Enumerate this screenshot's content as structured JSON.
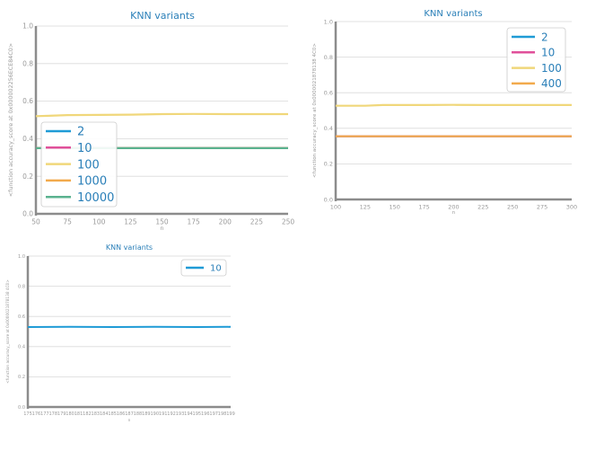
{
  "chart_data": [
    {
      "type": "line",
      "title": "KNN variants",
      "xlabel": "n",
      "ylabel": "<function accuracy_score at 0x000002256ECE84C0>",
      "xlim": [
        50,
        250
      ],
      "ylim": [
        0.0,
        1.0
      ],
      "xticks": [
        50,
        75,
        100,
        125,
        150,
        175,
        200,
        225,
        250
      ],
      "yticks": [
        0.0,
        0.2,
        0.4,
        0.6,
        0.8,
        1.0
      ],
      "grid": "horizontal",
      "legend_position": "lower-left",
      "series": [
        {
          "name": "2",
          "color": "#1f9bd6",
          "points": [
            [
              50,
              0.35
            ],
            [
              250,
              0.35
            ]
          ]
        },
        {
          "name": "10",
          "color": "#e0509a",
          "points": [
            [
              50,
              0.35
            ],
            [
              250,
              0.35
            ]
          ]
        },
        {
          "name": "100",
          "color": "#f0d77a",
          "points": [
            [
              50,
              0.52
            ],
            [
              60,
              0.522
            ],
            [
              75,
              0.526
            ],
            [
              100,
              0.527
            ],
            [
              125,
              0.528
            ],
            [
              150,
              0.531
            ],
            [
              175,
              0.532
            ],
            [
              200,
              0.531
            ],
            [
              225,
              0.531
            ],
            [
              250,
              0.531
            ]
          ]
        },
        {
          "name": "1000",
          "color": "#f2aa4c",
          "points": [
            [
              50,
              0.35
            ],
            [
              250,
              0.35
            ]
          ]
        },
        {
          "name": "10000",
          "color": "#5ab28f",
          "points": [
            [
              50,
              0.35
            ],
            [
              250,
              0.35
            ]
          ]
        }
      ]
    },
    {
      "type": "line",
      "title": "KNN variants",
      "xlabel": "n",
      "ylabel": "<function accuracy_score at 0x0000021878138 4C0>",
      "xlim": [
        100,
        300
      ],
      "ylim": [
        0.0,
        1.0
      ],
      "xticks": [
        100,
        125,
        150,
        175,
        200,
        225,
        250,
        275,
        300
      ],
      "yticks": [
        0.0,
        0.2,
        0.4,
        0.6,
        0.8,
        1.0
      ],
      "grid": "horizontal",
      "legend_position": "upper-right",
      "series": [
        {
          "name": "2",
          "color": "#1f9bd6",
          "points": [
            [
              100,
              0.355
            ],
            [
              300,
              0.355
            ]
          ]
        },
        {
          "name": "10",
          "color": "#e0509a",
          "points": [
            [
              100,
              0.355
            ],
            [
              300,
              0.355
            ]
          ]
        },
        {
          "name": "100",
          "color": "#f0d77a",
          "points": [
            [
              100,
              0.527
            ],
            [
              125,
              0.527
            ],
            [
              140,
              0.531
            ],
            [
              175,
              0.531
            ],
            [
              200,
              0.532
            ],
            [
              225,
              0.531
            ],
            [
              250,
              0.531
            ],
            [
              275,
              0.531
            ],
            [
              300,
              0.531
            ]
          ]
        },
        {
          "name": "400",
          "color": "#f2aa4c",
          "points": [
            [
              100,
              0.355
            ],
            [
              300,
              0.355
            ]
          ]
        }
      ]
    },
    {
      "type": "line",
      "title": "KNN variants",
      "xlabel": "n",
      "ylabel": "<function accuracy_score at 0x0000021878138 4C0>",
      "xlim": [
        175,
        199
      ],
      "ylim": [
        0.0,
        1.0
      ],
      "xticks": [
        175,
        176,
        177,
        178,
        179,
        180,
        181,
        182,
        183,
        184,
        185,
        186,
        187,
        188,
        189,
        190,
        191,
        192,
        193,
        194,
        195,
        196,
        197,
        198,
        199
      ],
      "yticks": [
        0.0,
        0.2,
        0.4,
        0.6,
        0.8,
        1.0
      ],
      "grid": "horizontal",
      "legend_position": "upper-right",
      "series": [
        {
          "name": "10",
          "color": "#1f9bd6",
          "points": [
            [
              175,
              0.53
            ],
            [
              180,
              0.531
            ],
            [
              185,
              0.53
            ],
            [
              190,
              0.531
            ],
            [
              195,
              0.53
            ],
            [
              199,
              0.531
            ]
          ]
        }
      ]
    }
  ]
}
